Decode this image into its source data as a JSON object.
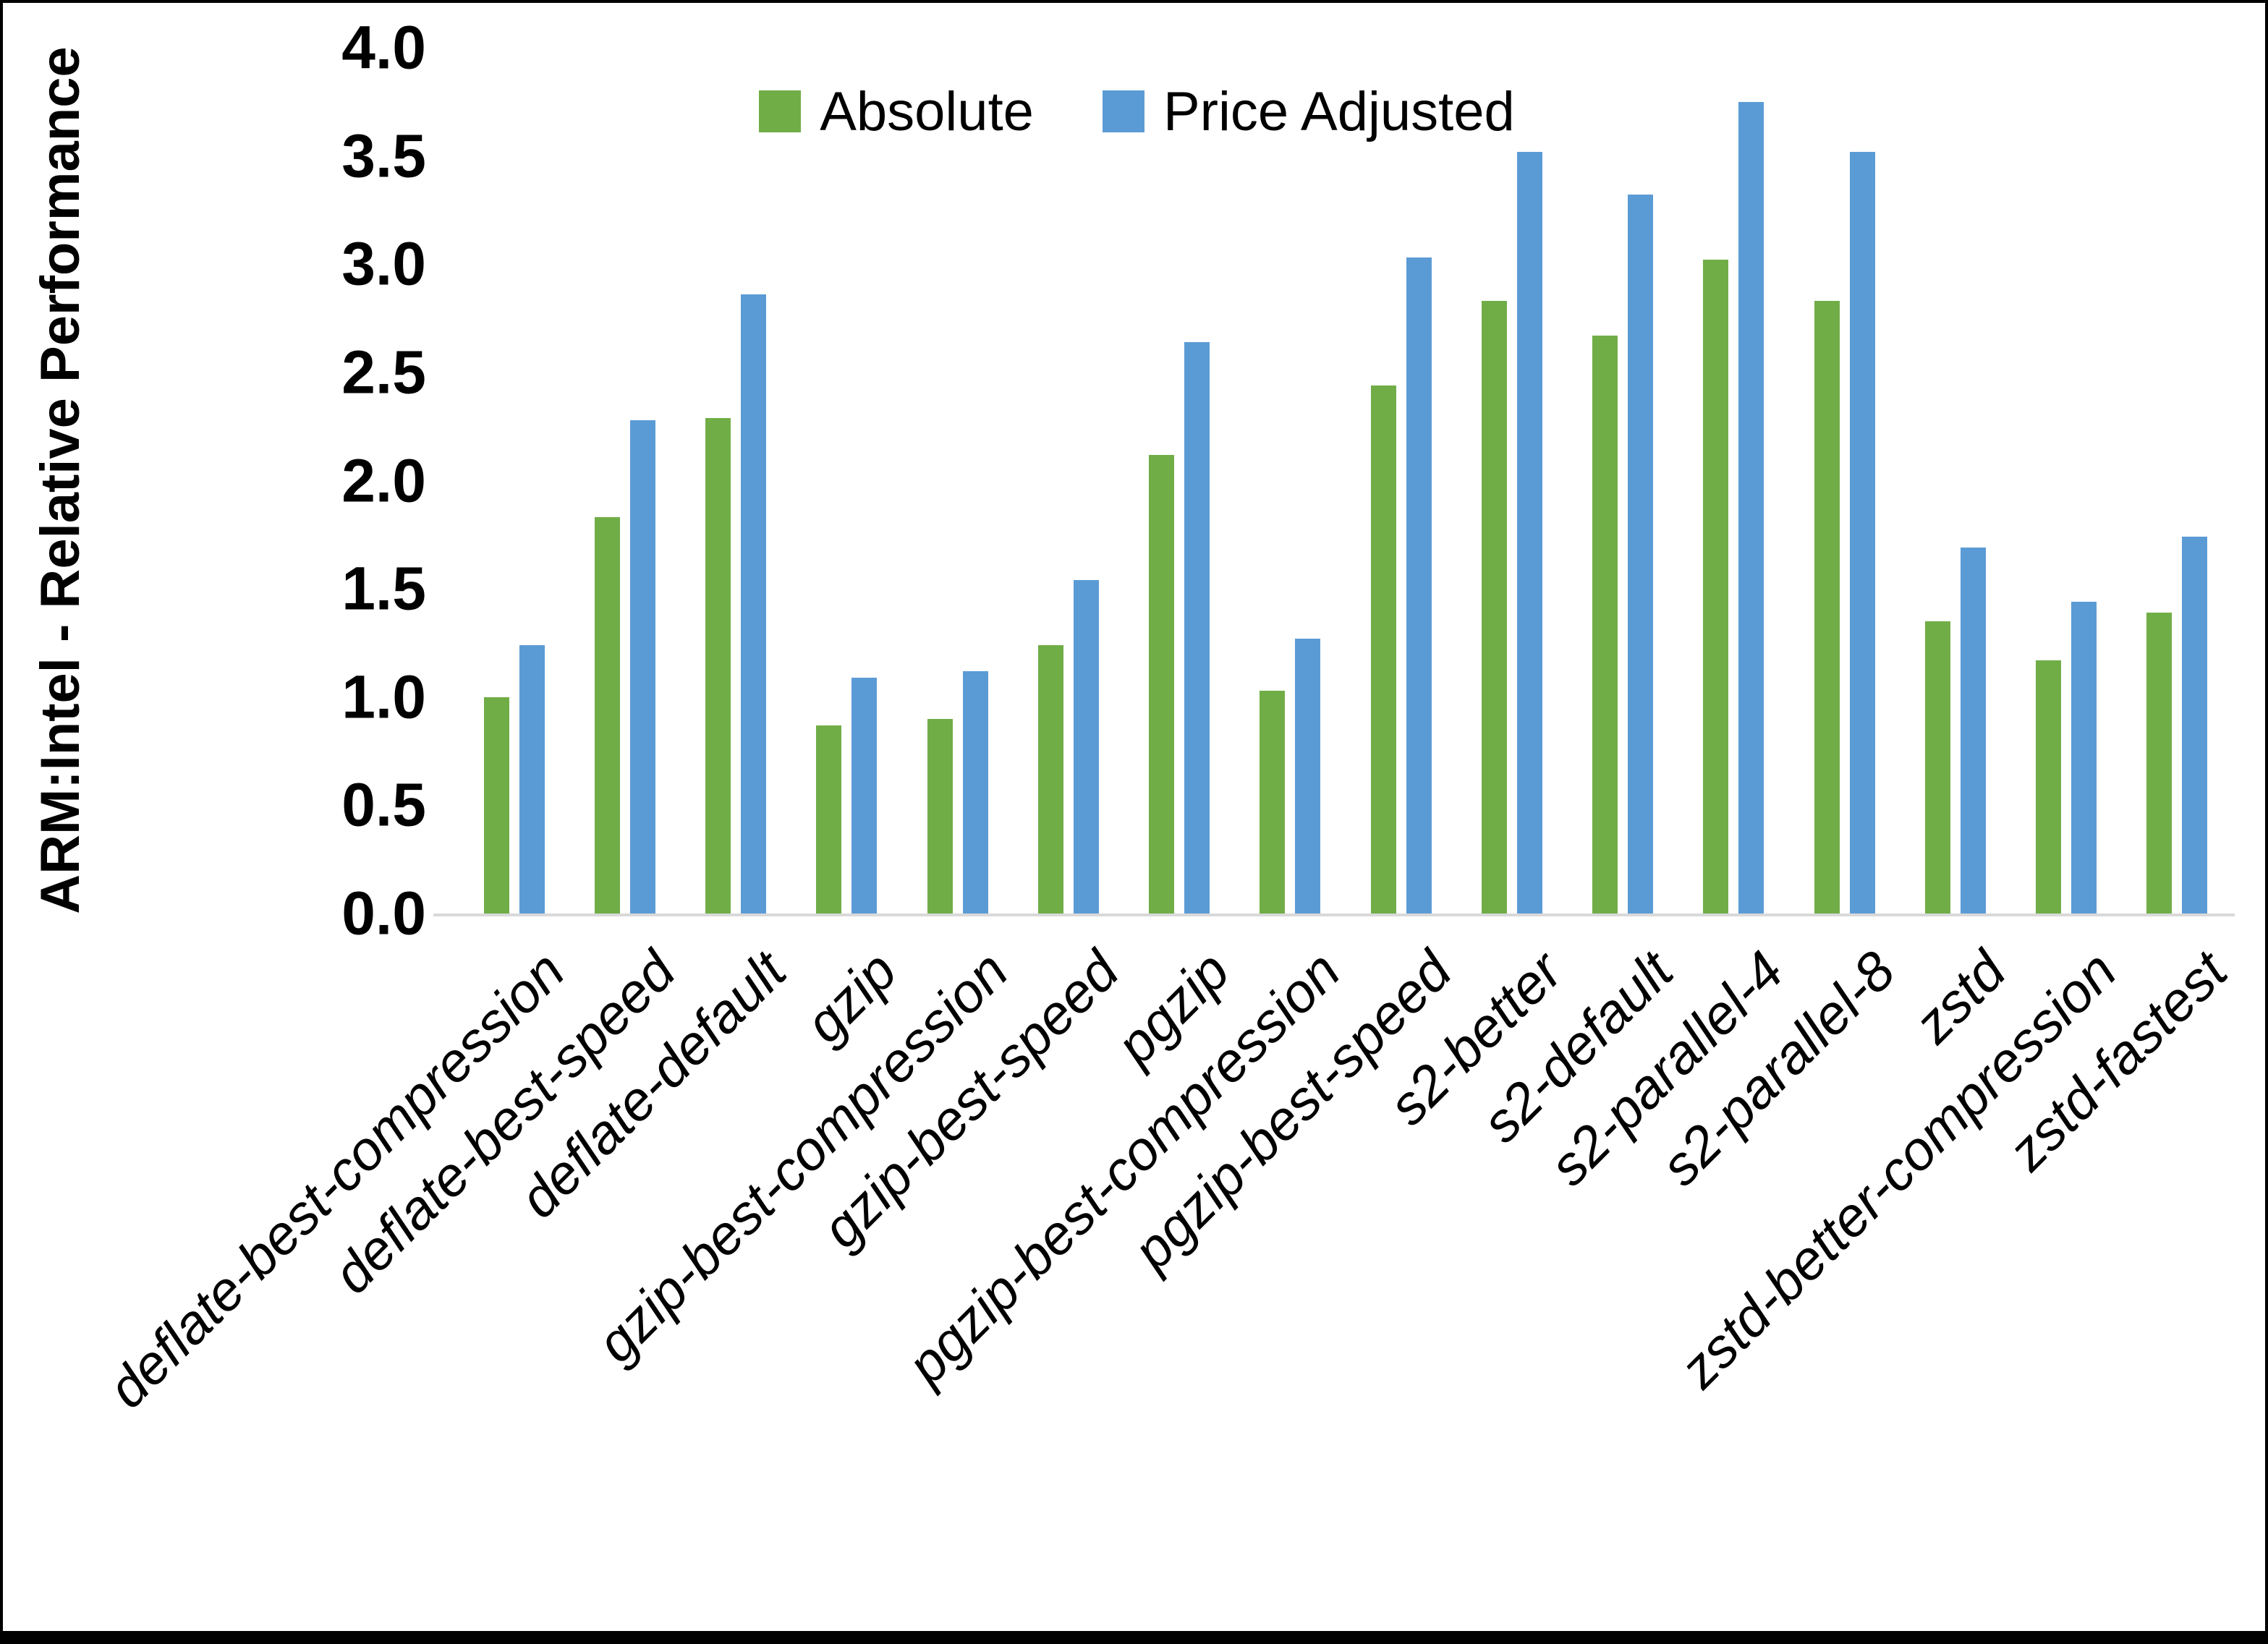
{
  "chart_data": {
    "type": "bar",
    "title": "",
    "xlabel": "",
    "ylabel": "ARM:Intel - Relative Performance",
    "ylim": [
      0.0,
      4.0
    ],
    "ytick_step": 0.5,
    "ytick_labels": [
      "0.0",
      "0.5",
      "1.0",
      "1.5",
      "2.0",
      "2.5",
      "3.0",
      "3.5",
      "4.0"
    ],
    "grid": false,
    "legend_position": "top-center",
    "categories": [
      "deflate-best-compression",
      "deflate-best-speed",
      "deflate-default",
      "gzip",
      "gzip-best-compression",
      "gzip-best-speed",
      "pgzip",
      "pgzip-best-compression",
      "pgzip-best-speed",
      "s2-better",
      "s2-default",
      "s2-parallel-4",
      "s2-parallel-8",
      "zstd",
      "zstd-better-compression",
      "zstd-fastest"
    ],
    "series": [
      {
        "name": "Absolute",
        "color": "#70AD47",
        "values": [
          1.0,
          1.83,
          2.29,
          0.87,
          0.9,
          1.24,
          2.12,
          1.03,
          2.44,
          2.83,
          2.67,
          3.02,
          2.83,
          1.35,
          1.17,
          1.39
        ]
      },
      {
        "name": "Price Adjusted",
        "color": "#5B9BD5",
        "values": [
          1.24,
          2.28,
          2.86,
          1.09,
          1.12,
          1.54,
          2.64,
          1.27,
          3.03,
          3.52,
          3.32,
          3.75,
          3.52,
          1.69,
          1.44,
          1.74
        ]
      }
    ]
  },
  "colors": {
    "background": "#FFFFFF",
    "frame": "#000000",
    "axis_line": "#D9D9D9",
    "text": "#000000"
  }
}
